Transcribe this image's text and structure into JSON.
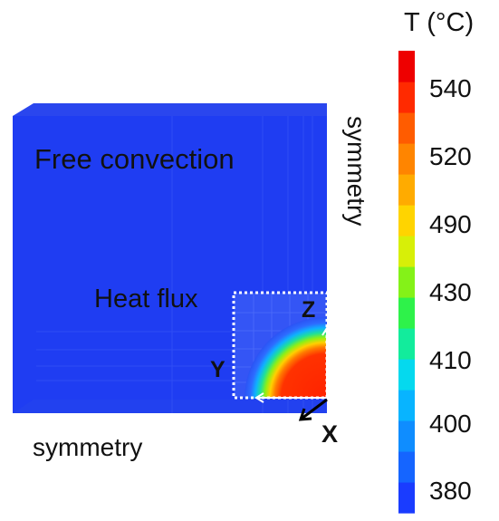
{
  "labels": {
    "free_convection": "Free convection",
    "heat_flux": "Heat flux",
    "symmetry_bottom": "symmetry",
    "symmetry_right": "symmetry",
    "axis_x": "X",
    "axis_y": "Y",
    "axis_z": "Z"
  },
  "colorbar": {
    "title": "T (°C)",
    "ticks": [
      "540",
      "520",
      "490",
      "430",
      "410",
      "400",
      "380"
    ],
    "colors": [
      "#1a3cff",
      "#1565ff",
      "#0f8dff",
      "#08b4ff",
      "#05d9ee",
      "#12ec9c",
      "#2ef24a",
      "#84f218",
      "#d7ef08",
      "#ffd400",
      "#ffab00",
      "#ff8500",
      "#ff5c00",
      "#ff2a00",
      "#ee0000"
    ]
  },
  "colors": {
    "block": "#1f3df2",
    "hot": "#ff2a00"
  }
}
